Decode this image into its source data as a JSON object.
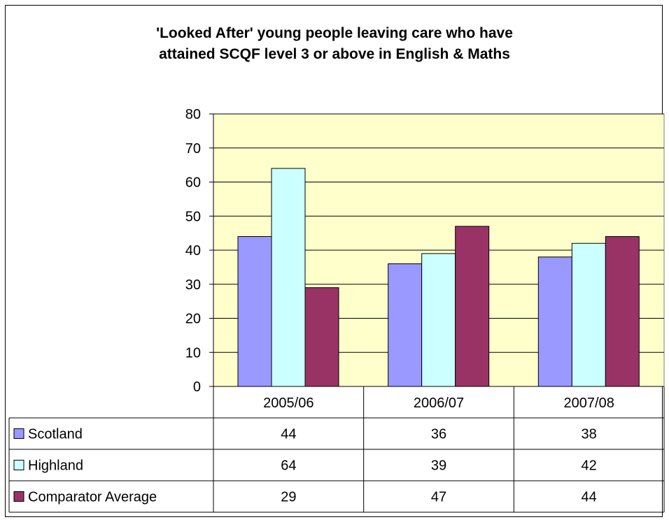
{
  "chart_data": {
    "type": "bar",
    "title_lines": [
      "'Looked After' young people leaving care who have",
      "attained SCQF level 3 or above in English & Maths"
    ],
    "categories": [
      "2005/06",
      "2006/07",
      "2007/08"
    ],
    "series": [
      {
        "name": "Scotland",
        "values": [
          44,
          36,
          38
        ],
        "color": "#9999ff"
      },
      {
        "name": "Highland",
        "values": [
          64,
          39,
          42
        ],
        "color": "#ccffff"
      },
      {
        "name": "Comparator Average",
        "values": [
          29,
          47,
          44
        ],
        "color": "#993366"
      }
    ],
    "ylim": [
      0,
      80
    ],
    "yticks": [
      0,
      10,
      20,
      30,
      40,
      50,
      60,
      70,
      80
    ],
    "grid": true,
    "plot_background": "#ffffcc",
    "legend": "data-table"
  }
}
